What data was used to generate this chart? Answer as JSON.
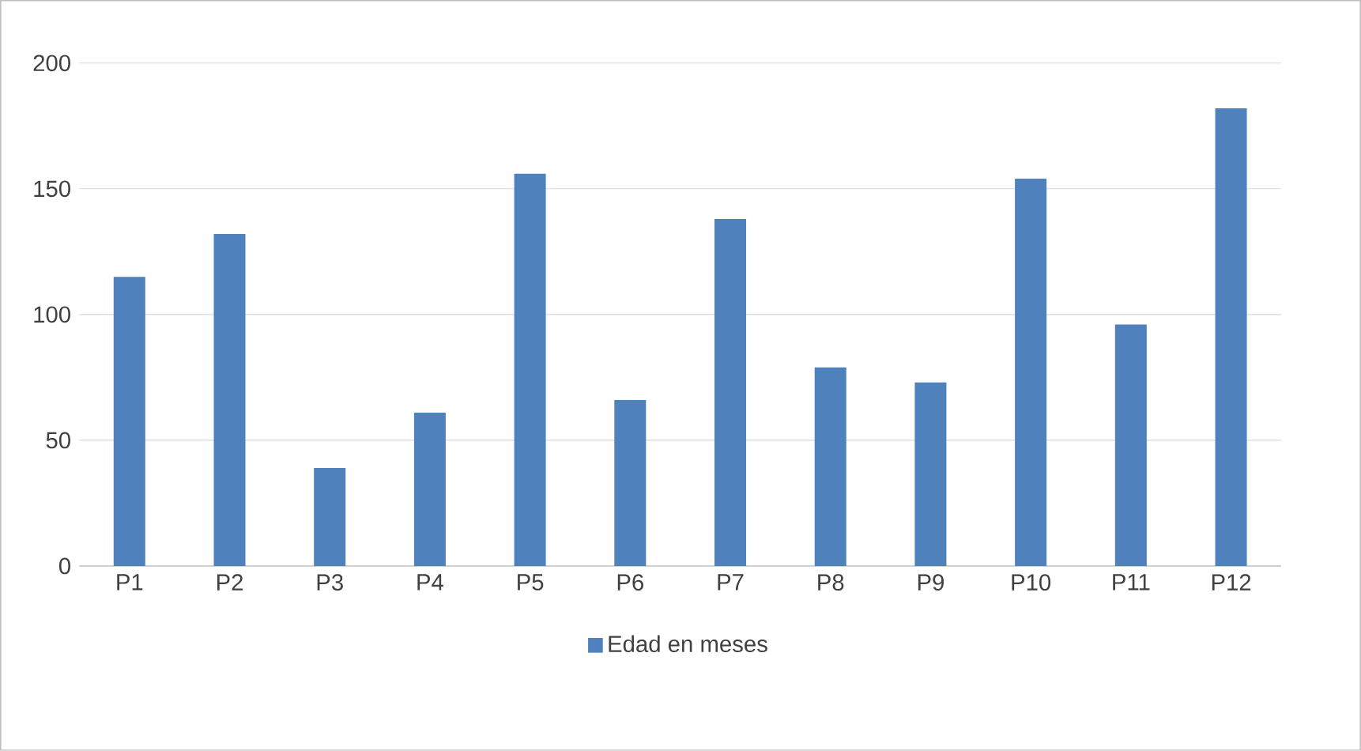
{
  "chart_data": {
    "type": "bar",
    "categories": [
      "P1",
      "P2",
      "P3",
      "P4",
      "P5",
      "P6",
      "P7",
      "P8",
      "P9",
      "P10",
      "P11",
      "P12"
    ],
    "series": [
      {
        "name": "Edad en meses",
        "color": "#4f81bd",
        "values": [
          115,
          132,
          39,
          61,
          156,
          66,
          138,
          79,
          73,
          154,
          96,
          182
        ]
      }
    ],
    "ylim": [
      0,
      200
    ],
    "yticks": [
      0,
      50,
      100,
      150,
      200
    ],
    "grid": "y",
    "legend": "bottom"
  }
}
